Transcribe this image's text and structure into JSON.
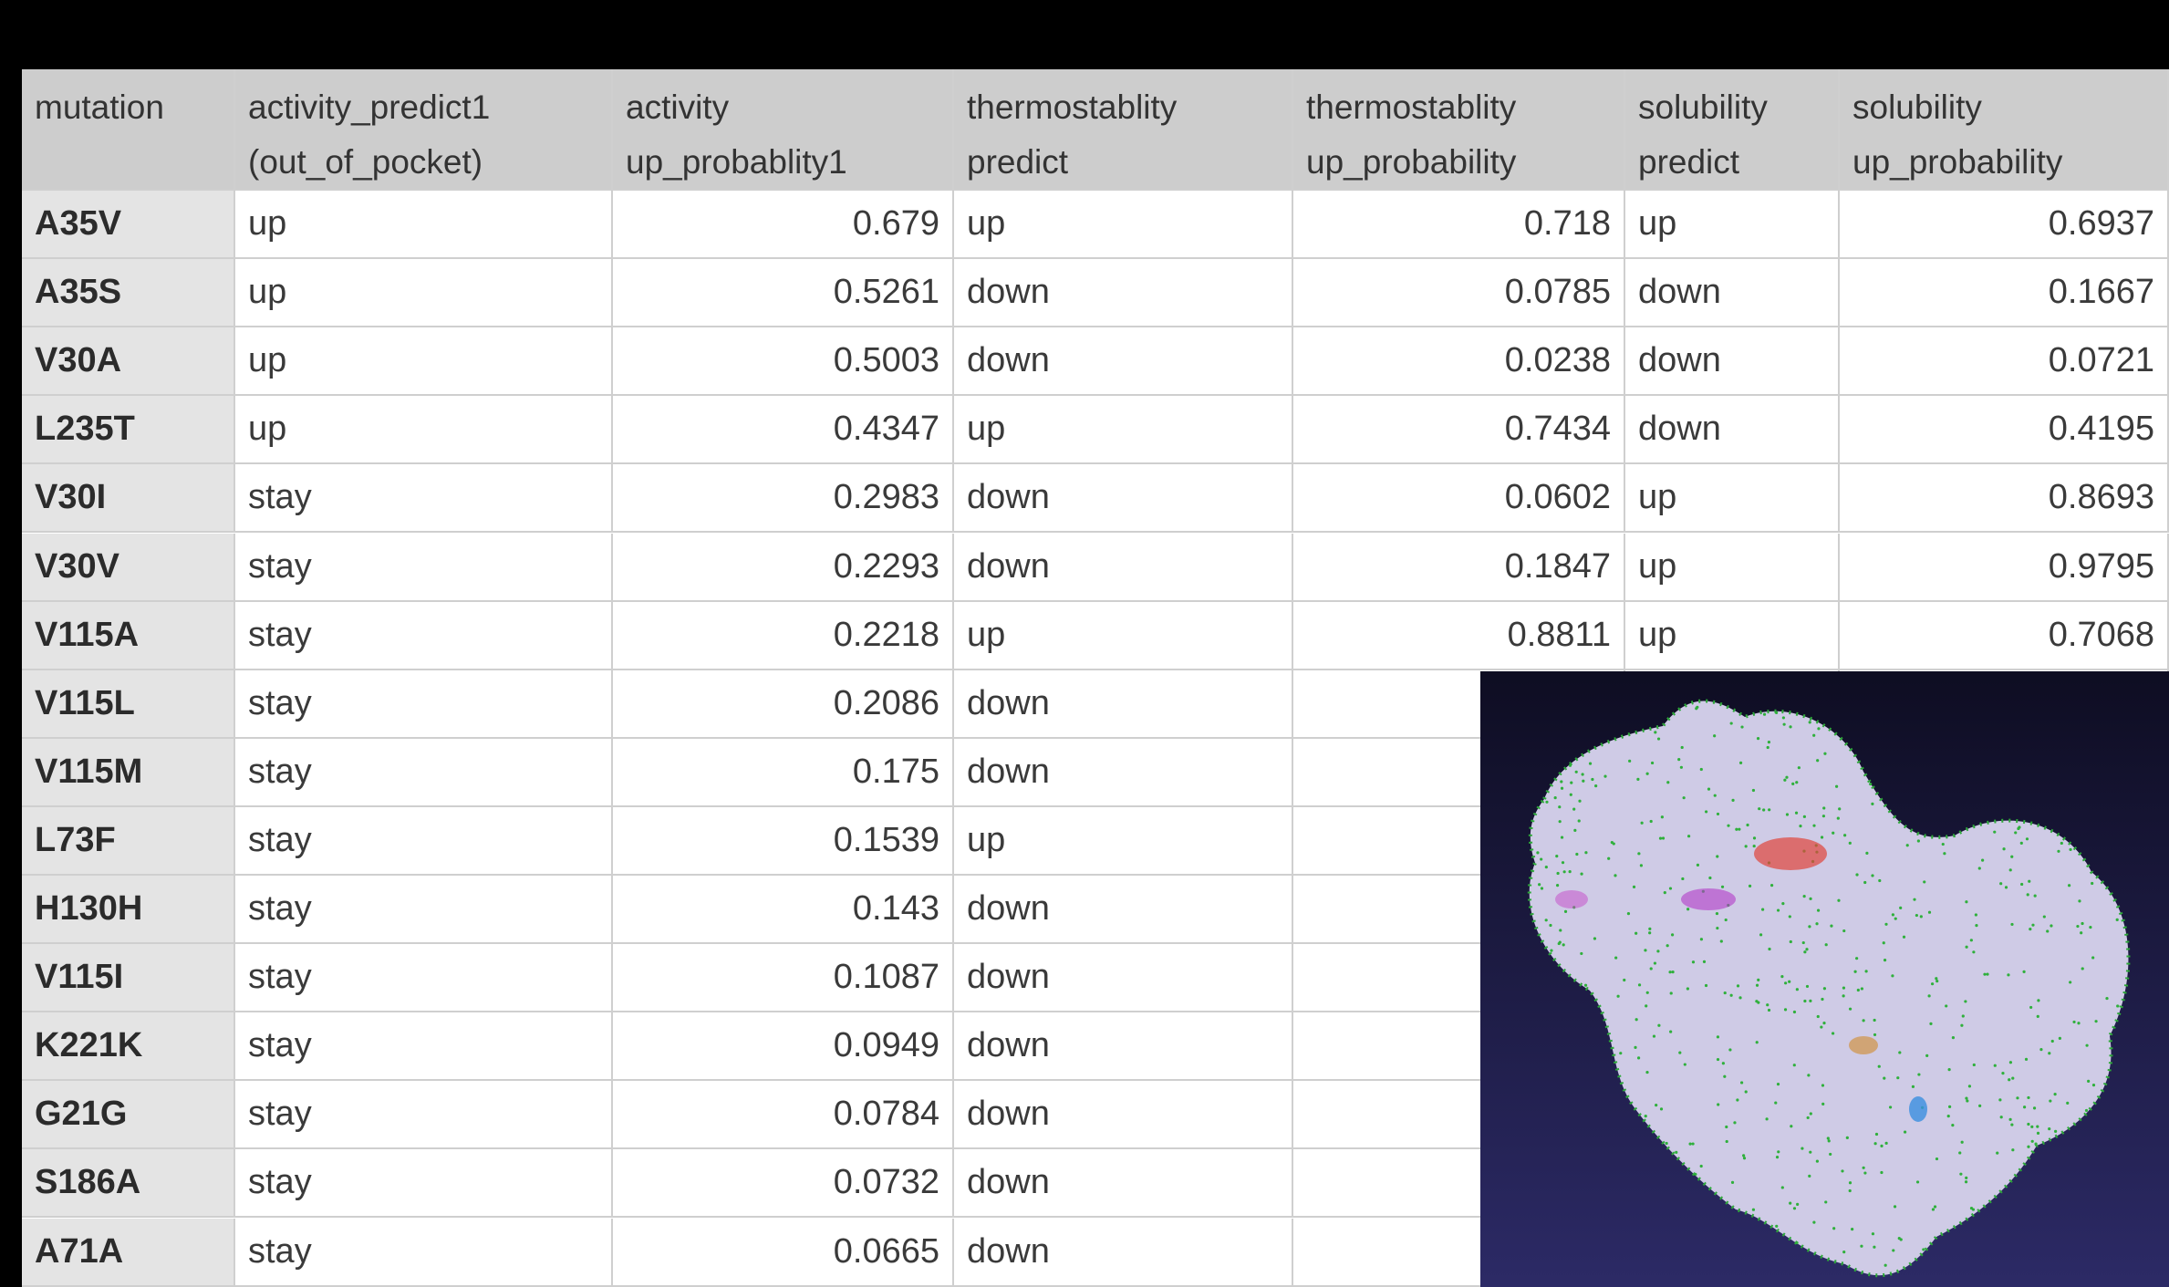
{
  "table": {
    "header": [
      [
        "mutation"
      ],
      [
        "activity_predict1",
        "(out_of_pocket)"
      ],
      [
        "activity",
        "up_probablity1"
      ],
      [
        "thermostablity",
        "predict"
      ],
      [
        "thermostablity",
        "up_probability"
      ],
      [
        "solubility",
        "predict"
      ],
      [
        "solubility",
        "up_probability"
      ]
    ],
    "rows": [
      [
        "A35V",
        "up",
        "0.679",
        "up",
        "0.718",
        "up",
        "0.6937"
      ],
      [
        "A35S",
        "up",
        "0.5261",
        "down",
        "0.0785",
        "down",
        "0.1667"
      ],
      [
        "V30A",
        "up",
        "0.5003",
        "down",
        "0.0238",
        "down",
        "0.0721"
      ],
      [
        "L235T",
        "up",
        "0.4347",
        "up",
        "0.7434",
        "down",
        "0.4195"
      ],
      [
        "V30I",
        "stay",
        "0.2983",
        "down",
        "0.0602",
        "up",
        "0.8693"
      ],
      [
        "V30V",
        "stay",
        "0.2293",
        "down",
        "0.1847",
        "up",
        "0.9795"
      ],
      [
        "V115A",
        "stay",
        "0.2218",
        "up",
        "0.8811",
        "up",
        "0.7068"
      ],
      [
        "V115L",
        "stay",
        "0.2086",
        "down"
      ],
      [
        "V115M",
        "stay",
        "0.175",
        "down"
      ],
      [
        "L73F",
        "stay",
        "0.1539",
        "up"
      ],
      [
        "H130H",
        "stay",
        "0.143",
        "down"
      ],
      [
        "V115I",
        "stay",
        "0.1087",
        "down"
      ],
      [
        "K221K",
        "stay",
        "0.0949",
        "down"
      ],
      [
        "G21G",
        "stay",
        "0.0784",
        "down"
      ],
      [
        "S186A",
        "stay",
        "0.0732",
        "down"
      ],
      [
        "A71A",
        "stay",
        "0.0665",
        "down"
      ]
    ]
  }
}
